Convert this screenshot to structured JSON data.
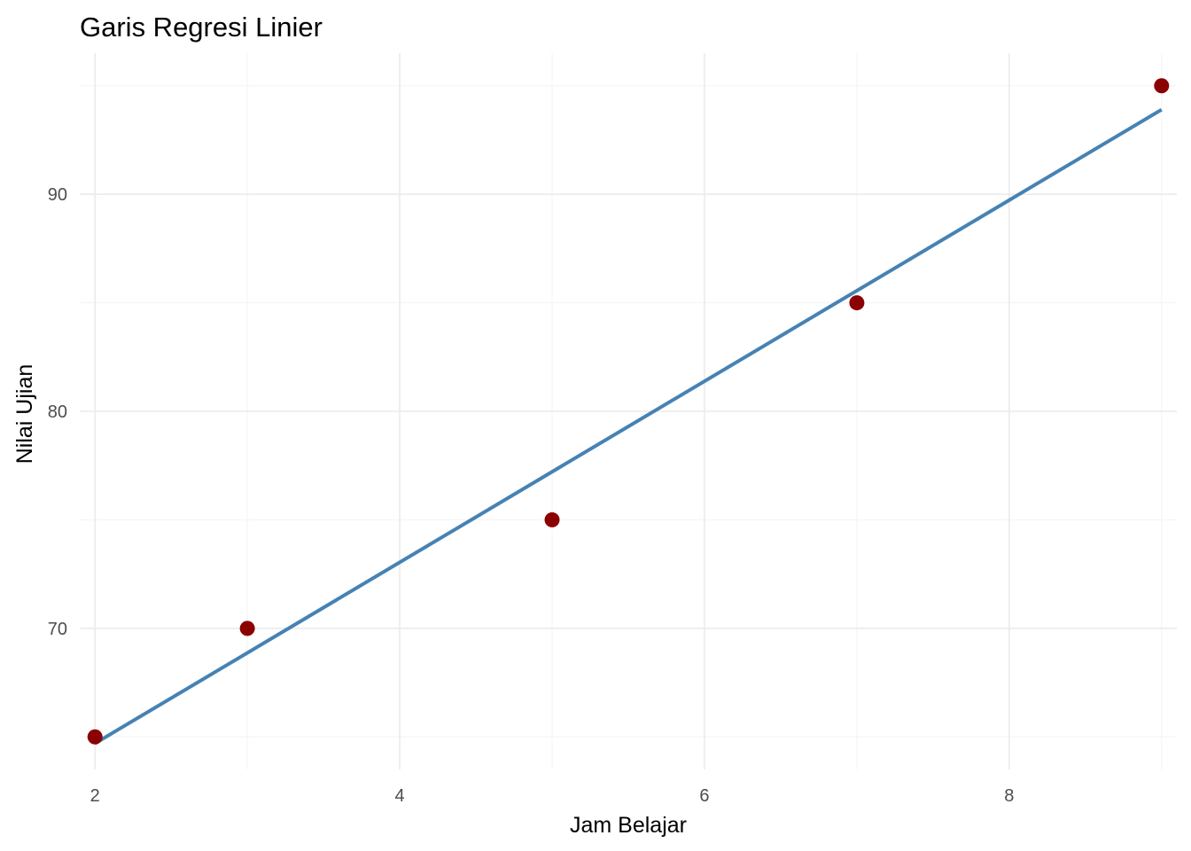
{
  "chart_data": {
    "type": "scatter",
    "title": "Garis Regresi Linier",
    "xlabel": "Jam Belajar",
    "ylabel": "Nilai Ujian",
    "xlim": [
      1.9,
      9.1
    ],
    "ylim": [
      63.5,
      96.5
    ],
    "x_ticks": [
      2,
      4,
      6,
      8
    ],
    "x_minor": [
      3,
      5,
      7,
      9
    ],
    "y_ticks": [
      70,
      80,
      90
    ],
    "y_minor": [
      65,
      75,
      85,
      95
    ],
    "grid": true,
    "points": {
      "x": [
        2,
        3,
        5,
        7,
        9
      ],
      "y": [
        65,
        70,
        75,
        85,
        95
      ],
      "color": "#8b0000"
    },
    "regression_line": {
      "x": [
        2,
        9
      ],
      "y": [
        64.7,
        93.9
      ],
      "color": "#4682b4"
    }
  }
}
